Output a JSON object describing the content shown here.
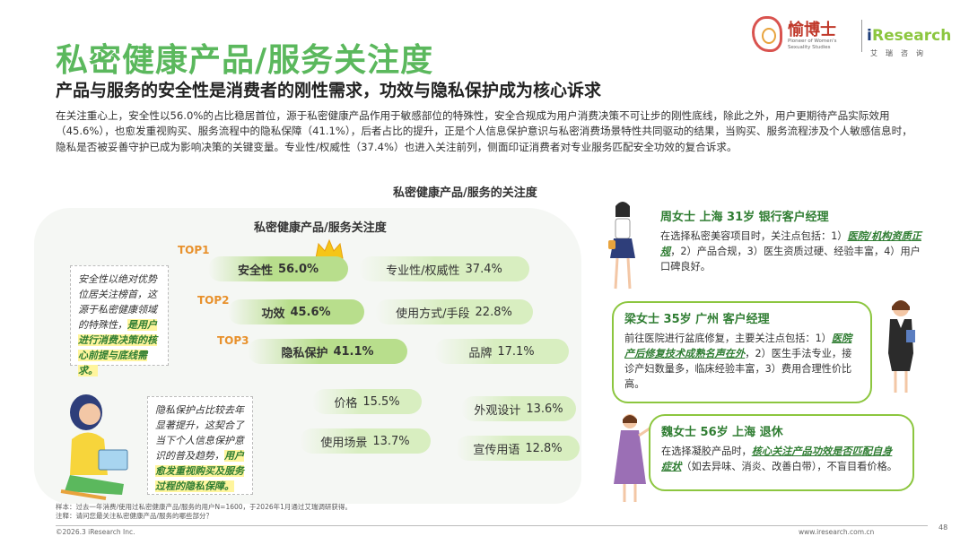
{
  "header": {
    "title": "私密健康产品/服务关注度",
    "subtitle": "产品与服务的安全性是消费者的刚性需求，功效与隐私保护成为核心诉求",
    "body": "在关注重心上，安全性以56.0%的占比稳居首位，源于私密健康产品作用于敏感部位的特殊性，安全合规成为用户消费决策不可让步的刚性底线，除此之外，用户更期待产品实际效用（45.6%），也愈发重视购买、服务流程中的隐私保障（41.1%），后者占比的提升，正是个人信息保护意识与私密消费场景特性共同驱动的结果，当购买、服务流程涉及个人敏感信息时，隐私是否被妥善守护已成为影响决策的关键变量。专业性/权威性（37.4%）也进入关注前列，侧面印证消费者对专业服务匹配安全功效的复合诉求。"
  },
  "logos": {
    "yu_name": "愉博士",
    "yu_tag": "Pioneer of Women's Sexuality Studies",
    "ir_i": "i",
    "ir_name": "Research",
    "ir_cn": "艾瑞咨询"
  },
  "chart_data": {
    "type": "bubble-pills",
    "title": "私密健康产品/服务的关注度",
    "inner_title": "私密健康产品/服务关注度",
    "top_labels": [
      "TOP1",
      "TOP2",
      "TOP3"
    ],
    "items": [
      {
        "label": "安全性",
        "value": "56.0%",
        "rank": 1
      },
      {
        "label": "专业性/权威性",
        "value": "37.4%"
      },
      {
        "label": "功效",
        "value": "45.6%",
        "rank": 2
      },
      {
        "label": "使用方式/手段",
        "value": "22.8%"
      },
      {
        "label": "隐私保护",
        "value": "41.1%",
        "rank": 3
      },
      {
        "label": "品牌",
        "value": "17.1%"
      },
      {
        "label": "价格",
        "value": "15.5%"
      },
      {
        "label": "外观设计",
        "value": "13.6%"
      },
      {
        "label": "使用场景",
        "value": "13.7%"
      },
      {
        "label": "宣传用语",
        "value": "12.8%"
      }
    ]
  },
  "notes": {
    "n1_plain": "安全性以绝对优势位居关注榜首，这源于私密健康领域的特殊性，",
    "n1_hl": "是用户进行消费决策的核心前提与底线需求。",
    "n2_plain": "隐私保护占比较去年显著提升，这契合了当下个人信息保护意识的普及趋势，",
    "n2_hl": "用户愈发重视购买及服务过程的隐私保障。"
  },
  "cards": {
    "c1_head": "周女士  上海  31岁  银行客户经理",
    "c1_a": "在选择私密美容项目时，关注点包括：1）",
    "c1_hl": "医院/机构资质正规",
    "c1_b": "，2）产品合规，3）医生资质过硬、经验丰富，4）用户口碑良好。",
    "c2_head": "梁女士  35岁  广州  客户经理",
    "c2_a": "前往医院进行盆底修复，主要关注点包括：1）",
    "c2_hl": "医院产后修复技术成熟名声在外",
    "c2_b": "，2）医生手法专业，接诊产妇数量多，临床经验丰富，3）费用合理性价比高。",
    "c3_head": "魏女士  56岁  上海  退休",
    "c3_a": "在选择凝胶产品时，",
    "c3_hl": "核心关注产品功效是否匹配自身症状",
    "c3_b": "（如去异味、消炎、改善白带），不盲目看价格。"
  },
  "footer": {
    "sample": "样本：过去一年消费/使用过私密健康产品/服务的用户N=1600，于2026年1月通过艾瑞调研获得。",
    "note": "注释：请问您最关注私密健康产品/服务的哪些部分？",
    "copyright": "©2026.3 iResearch Inc.",
    "site": "www.iresearch.com.cn",
    "page": "48"
  },
  "colors": {
    "title_green": "#5BB85D",
    "pill_green": "#B8DE8C",
    "pill_light": "#D8EEC0",
    "top_orange": "#E8912C",
    "card_border": "#8CC63F"
  }
}
